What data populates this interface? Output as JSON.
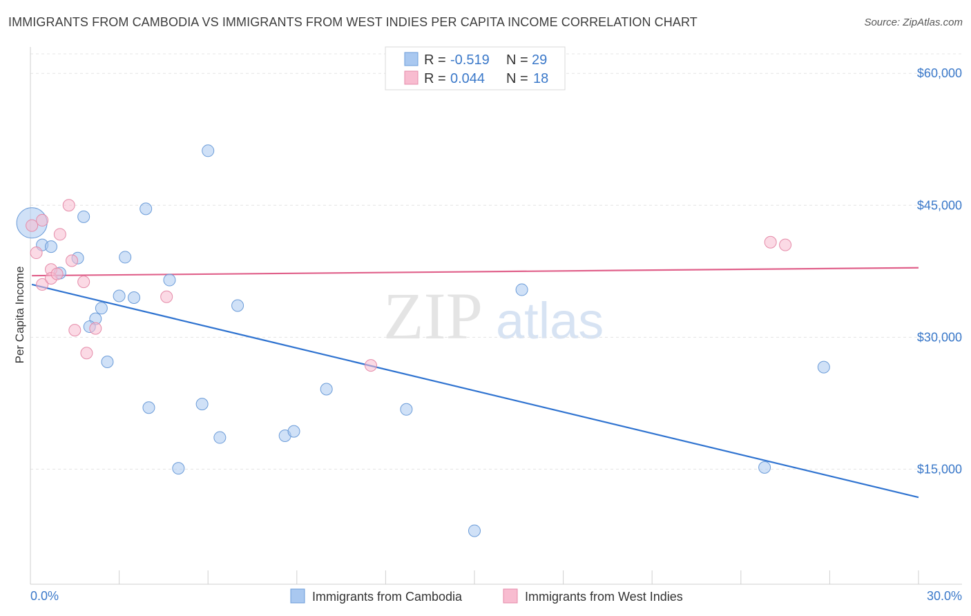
{
  "title": "IMMIGRANTS FROM CAMBODIA VS IMMIGRANTS FROM WEST INDIES PER CAPITA INCOME CORRELATION CHART",
  "source": "Source: ZipAtlas.com",
  "watermark": {
    "zip": "ZIP",
    "atlas": "atlas"
  },
  "legend_top": [
    {
      "r_label": "R =",
      "r_value": "-0.519",
      "n_label": "N =",
      "n_value": "29",
      "color": "#a9c8f0"
    },
    {
      "r_label": "R =",
      "r_value": "0.044",
      "n_label": "N =",
      "n_value": "18",
      "color": "#f8bcd0"
    }
  ],
  "chart_data": {
    "type": "scatter",
    "title": "IMMIGRANTS FROM CAMBODIA VS IMMIGRANTS FROM WEST INDIES PER CAPITA INCOME CORRELATION CHART",
    "xlabel": "",
    "ylabel": "Per Capita Income",
    "xlim": [
      0,
      30
    ],
    "ylim": [
      2000,
      63000
    ],
    "x_tick_labels": [
      "0.0%",
      "30.0%"
    ],
    "y_ticks": [
      15000,
      30000,
      45000,
      60000
    ],
    "y_tick_labels": [
      "$15,000",
      "$30,000",
      "$45,000",
      "$60,000"
    ],
    "grid": true,
    "legend_placement": "bottom-center",
    "series": [
      {
        "name": "Immigrants from Cambodia",
        "color": "#a9c8f0",
        "stroke": "#6a9bd8",
        "trend_color": "#2f73d0",
        "trend": [
          [
            0.05,
            36000
          ],
          [
            30,
            11800
          ]
        ],
        "points": [
          [
            0.05,
            43000,
            "big"
          ],
          [
            0.4,
            40500
          ],
          [
            0.7,
            40300
          ],
          [
            1.0,
            37300
          ],
          [
            1.6,
            39000
          ],
          [
            1.8,
            43700
          ],
          [
            2.2,
            32100
          ],
          [
            2.0,
            31200
          ],
          [
            2.4,
            33300
          ],
          [
            2.6,
            27200
          ],
          [
            3.0,
            34700
          ],
          [
            3.2,
            39100
          ],
          [
            3.5,
            34500
          ],
          [
            3.9,
            44600
          ],
          [
            4.0,
            22000
          ],
          [
            4.7,
            36500
          ],
          [
            5.0,
            15100
          ],
          [
            6.0,
            51200
          ],
          [
            5.8,
            22400
          ],
          [
            6.4,
            18600
          ],
          [
            7.0,
            33600
          ],
          [
            8.6,
            18800
          ],
          [
            8.9,
            19300
          ],
          [
            10.0,
            24100
          ],
          [
            12.7,
            21800
          ],
          [
            15.0,
            8000
          ],
          [
            16.6,
            35400
          ],
          [
            24.8,
            15200
          ],
          [
            26.8,
            26600
          ]
        ]
      },
      {
        "name": "Immigrants from West Indies",
        "color": "#f8bcd0",
        "stroke": "#e58aa8",
        "trend_color": "#e0608a",
        "trend": [
          [
            0.05,
            37000
          ],
          [
            30,
            37900
          ]
        ],
        "points": [
          [
            0.05,
            42700
          ],
          [
            0.2,
            39600
          ],
          [
            0.4,
            36000
          ],
          [
            0.4,
            43300
          ],
          [
            0.7,
            37700
          ],
          [
            0.7,
            36700
          ],
          [
            0.9,
            37200
          ],
          [
            1.0,
            41700
          ],
          [
            1.3,
            45000
          ],
          [
            1.4,
            38700
          ],
          [
            1.5,
            30800
          ],
          [
            1.8,
            36300
          ],
          [
            1.9,
            28200
          ],
          [
            2.2,
            31000
          ],
          [
            4.6,
            34600
          ],
          [
            11.5,
            26800
          ],
          [
            25.0,
            40800
          ],
          [
            25.5,
            40500
          ]
        ]
      }
    ]
  },
  "bottom_legend": [
    {
      "label": "Immigrants from Cambodia",
      "color": "#a9c8f0"
    },
    {
      "label": "Immigrants from West Indies",
      "color": "#f8bcd0"
    }
  ]
}
